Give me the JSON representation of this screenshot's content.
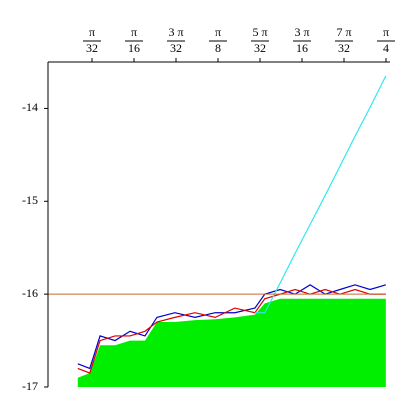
{
  "chart_data": {
    "type": "line",
    "x": [
      0.065,
      0.093,
      0.117,
      0.152,
      0.187,
      0.222,
      0.25,
      0.292,
      0.339,
      0.386,
      0.432,
      0.479,
      0.502,
      0.538,
      0.573,
      0.608,
      0.643,
      0.678,
      0.713,
      0.748,
      0.785
    ],
    "series": [
      {
        "color": "#00ee00",
        "fill": true,
        "values": [
          -16.9,
          -16.85,
          -16.55,
          -16.55,
          -16.5,
          -16.5,
          -16.3,
          -16.3,
          -16.28,
          -16.27,
          -16.25,
          -16.22,
          -16.1,
          -16.05,
          -16.05,
          -16.05,
          -16.05,
          -16.05,
          -16.05,
          -16.05,
          -16.05
        ]
      },
      {
        "color": "#0000cc",
        "values": [
          -16.75,
          -16.8,
          -16.45,
          -16.5,
          -16.4,
          -16.45,
          -16.25,
          -16.2,
          -16.25,
          -16.2,
          -16.2,
          -16.15,
          -16.0,
          -15.95,
          -16.0,
          -15.9,
          -16.0,
          -15.95,
          -15.9,
          -15.95,
          -15.9
        ]
      },
      {
        "color": "#dd0000",
        "values": [
          -16.8,
          -16.85,
          -16.5,
          -16.45,
          -16.45,
          -16.4,
          -16.3,
          -16.25,
          -16.2,
          -16.25,
          -16.15,
          -16.2,
          -16.05,
          -16.0,
          -15.95,
          -16.0,
          -15.95,
          -16.0,
          -15.95,
          -16.0,
          -16.0
        ]
      },
      {
        "color": "#33e6f0",
        "values": [
          null,
          null,
          null,
          null,
          null,
          null,
          null,
          null,
          null,
          null,
          null,
          -16.2,
          -16.2,
          -15.88,
          -15.56,
          -15.25,
          -14.94,
          -14.62,
          -14.3,
          -13.99,
          -13.65
        ]
      }
    ],
    "hline": {
      "value": -16,
      "color": "#c8682c"
    },
    "xlim": [
      0,
      0.7854
    ],
    "ylim": [
      -17,
      -13.5
    ],
    "xticks": [
      {
        "value": 0.09817,
        "label": [
          "π",
          "32"
        ]
      },
      {
        "value": 0.19635,
        "label": [
          "π",
          "16"
        ]
      },
      {
        "value": 0.29452,
        "label": [
          "3 π",
          "32"
        ]
      },
      {
        "value": 0.3927,
        "label": [
          "π",
          "8"
        ]
      },
      {
        "value": 0.49087,
        "label": [
          "5 π",
          "32"
        ]
      },
      {
        "value": 0.58905,
        "label": [
          "3 π",
          "16"
        ]
      },
      {
        "value": 0.68722,
        "label": [
          "7 π",
          "32"
        ]
      },
      {
        "value": 0.7854,
        "label": [
          "π",
          "4"
        ]
      }
    ],
    "yticks": [
      -17,
      -16,
      -15,
      -14
    ]
  }
}
